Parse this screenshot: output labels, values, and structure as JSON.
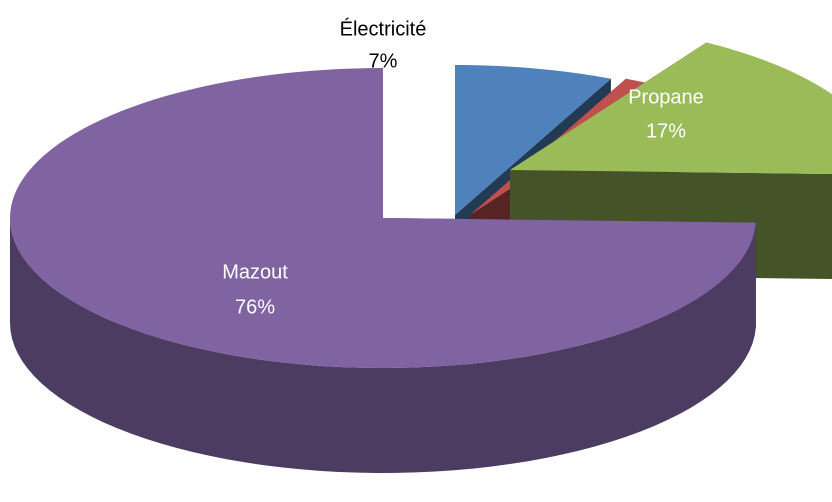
{
  "chart_data": {
    "type": "pie",
    "categories": [
      "Électricité",
      null,
      "Propane",
      "Mazout"
    ],
    "values": [
      7,
      2,
      17,
      76
    ],
    "value_labels": [
      "7%",
      null,
      "17%",
      "76%"
    ],
    "colors": [
      "#4f81bd",
      "#c0504d",
      "#9bbb59",
      "#8064a2"
    ]
  }
}
